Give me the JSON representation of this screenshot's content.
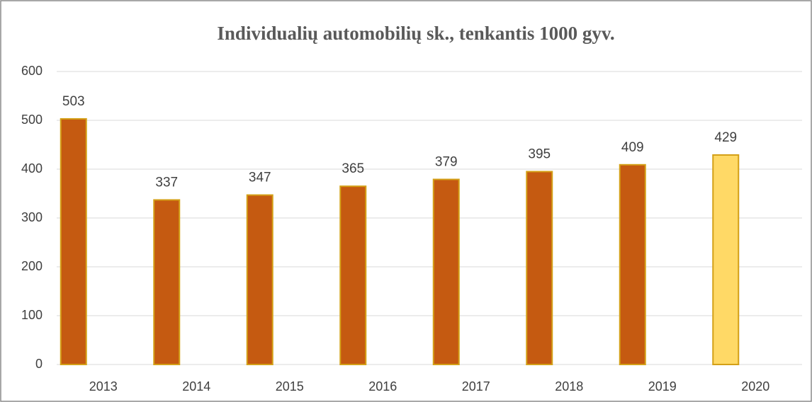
{
  "chart_data": {
    "type": "bar",
    "title": "Individualių automobilių sk., tenkantis 1000 gyv.",
    "categories": [
      "2013",
      "2014",
      "2015",
      "2016",
      "2017",
      "2018",
      "2019",
      "2020"
    ],
    "values": [
      503,
      337,
      347,
      365,
      379,
      395,
      409,
      429
    ],
    "colors": [
      "#c55a11",
      "#c55a11",
      "#c55a11",
      "#c55a11",
      "#c55a11",
      "#c55a11",
      "#c55a11",
      "#ffd966"
    ],
    "ylim": [
      0,
      600
    ],
    "yticks": [
      0,
      100,
      200,
      300,
      400,
      500,
      600
    ],
    "grid": true
  }
}
